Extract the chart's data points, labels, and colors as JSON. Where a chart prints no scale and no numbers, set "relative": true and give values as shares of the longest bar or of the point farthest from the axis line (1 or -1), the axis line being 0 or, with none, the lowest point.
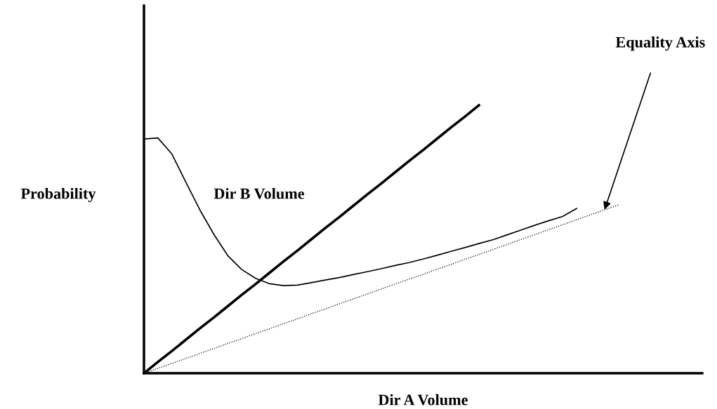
{
  "chart_data": {
    "type": "line",
    "relative": true,
    "xlabel": "Dir A Volume",
    "ylabel": "Probability",
    "categories": [
      null,
      null,
      null,
      null,
      null,
      null,
      null,
      null,
      null,
      null,
      null,
      null,
      null,
      null,
      null,
      null,
      null,
      null,
      null,
      null,
      null,
      null,
      null,
      null,
      null,
      null,
      null,
      null,
      null,
      null,
      null,
      null,
      null,
      null,
      null
    ],
    "annotations": [
      "Dir B Volume",
      "Equality Axis"
    ],
    "series": [
      {
        "color": "#000000",
        "line_style": "solid",
        "values": [
          0.874,
          0.878,
          0.818,
          0.713,
          0.61,
          0.519,
          0.439,
          0.387,
          0.354,
          0.334,
          0.327,
          0.329,
          0.338,
          0.348,
          0.357,
          0.368,
          0.379,
          0.39,
          0.402,
          0.413,
          0.426,
          0.44,
          0.455,
          0.469,
          0.484,
          0.498,
          0.516,
          0.534,
          0.552,
          0.569,
          0.585,
          0.615,
          null,
          null,
          null
        ]
      },
      {
        "color": "#000000",
        "line_style": "solid",
        "values": [
          0,
          0.042,
          0.083,
          0.125,
          0.167,
          0.208,
          0.25,
          0.292,
          0.333,
          0.375,
          0.417,
          0.458,
          0.5,
          0.542,
          0.583,
          0.625,
          0.667,
          0.708,
          0.75,
          0.792,
          0.833,
          0.875,
          0.917,
          0.958,
          1,
          null,
          null,
          null,
          null,
          null,
          null,
          null,
          null,
          null,
          null
        ]
      },
      {
        "color": "#000000",
        "line_style": "dotted",
        "values": [
          0,
          0.018,
          0.037,
          0.055,
          0.074,
          0.092,
          0.111,
          0.129,
          0.148,
          0.166,
          0.185,
          0.203,
          0.222,
          0.24,
          0.259,
          0.277,
          0.296,
          0.314,
          0.333,
          0.351,
          0.369,
          0.388,
          0.406,
          0.425,
          0.443,
          0.462,
          0.48,
          0.499,
          0.517,
          0.536,
          0.554,
          0.573,
          0.591,
          0.61,
          0.628
        ]
      }
    ]
  }
}
